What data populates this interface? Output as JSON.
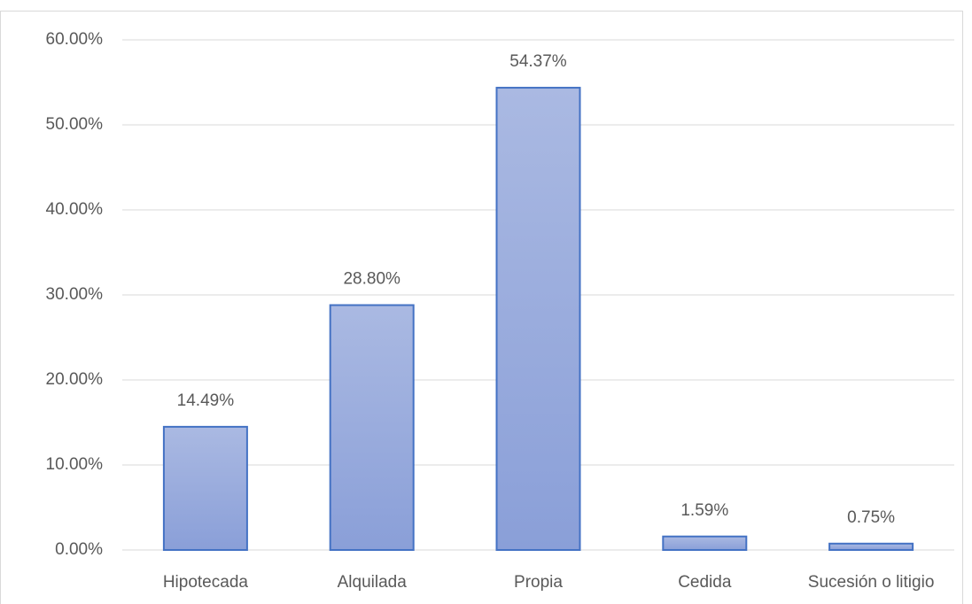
{
  "chart_data": {
    "type": "bar",
    "categories": [
      "Hipotecada",
      "Alquilada",
      "Propia",
      "Cedida",
      "Sucesión o litigio"
    ],
    "values": [
      14.49,
      28.8,
      54.37,
      1.59,
      0.75
    ],
    "value_labels": [
      "14.49%",
      "28.80%",
      "54.37%",
      "1.59%",
      "0.75%"
    ],
    "color": "#4472c4",
    "ylim": [
      0,
      60
    ],
    "yticks": [
      {
        "value": 0,
        "label": "0.00%"
      },
      {
        "value": 10,
        "label": "10.00%"
      },
      {
        "value": 20,
        "label": "20.00%"
      },
      {
        "value": 30,
        "label": "30.00%"
      },
      {
        "value": 40,
        "label": "40.00%"
      },
      {
        "value": 50,
        "label": "50.00%"
      },
      {
        "value": 60,
        "label": "60.00%"
      }
    ],
    "grid": true
  }
}
